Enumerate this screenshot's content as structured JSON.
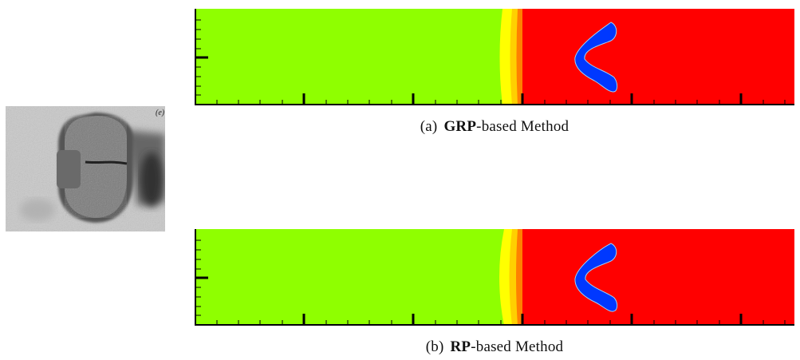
{
  "experiment_image": {
    "corner_label": "(e)"
  },
  "panels": [
    {
      "id": "a",
      "label": "(a)",
      "method_bold": "GRP",
      "method_rest": "-based Method"
    },
    {
      "id": "b",
      "label": "(b)",
      "method_bold": "RP",
      "method_rest": "-based Method"
    }
  ],
  "colors": {
    "pre_shock": "#8fff00",
    "post_shock": "#ff0000",
    "bubble": "#0038ff",
    "shock_band_1": "#ffff00",
    "shock_band_2": "#ffd000",
    "shock_band_3": "#ff8000"
  }
}
